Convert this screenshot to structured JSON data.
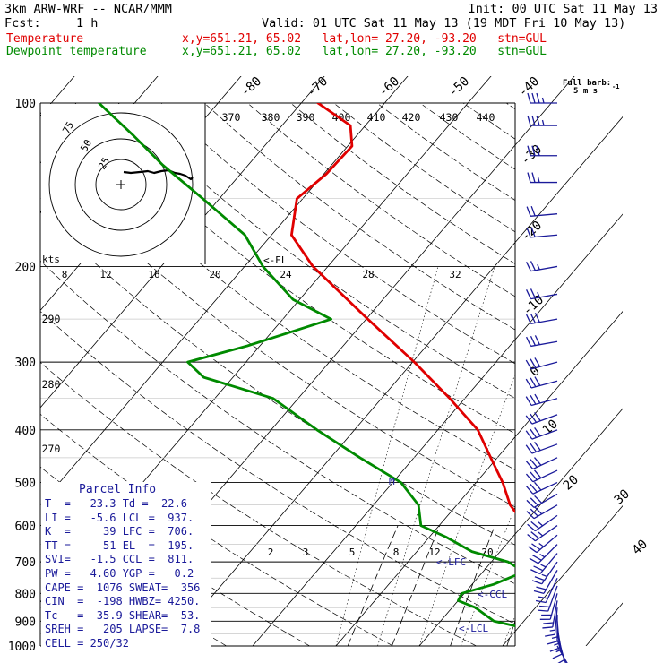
{
  "header": {
    "model": "3km ARW-WRF -- NCAR/MMM",
    "init": "Init: 00 UTC Sat 11 May 13",
    "fcst_label": "Fcst:",
    "fcst_value": "1 h",
    "valid": "Valid: 01 UTC Sat 11 May 13 (19 MDT Fri 10 May 13)",
    "temp_name": "Temperature",
    "dew_name": "Dewpoint temperature",
    "temp_loc": "x,y=651.21, 65.02   lat,lon= 27.20, -93.20   stn=GUL",
    "dew_loc": "x,y=651.21, 65.02   lat,lon= 27.20, -93.20   stn=GUL"
  },
  "colors": {
    "temperature": "#e00000",
    "dewpoint": "#008a00",
    "barbs": "#1a1a9a",
    "hodo": "#000000"
  },
  "barb_legend": {
    "line1": "Full barb:",
    "line2": "5 m s",
    "sup": "-1"
  },
  "labels": {
    "el": "<-EL",
    "lfc": "<-LFC",
    "ccl": "<-CCL",
    "lcl": "<-LCL",
    "m": "M",
    "kts": "kts"
  },
  "parcel_info": {
    "title": "Parcel Info",
    "rows": [
      "T  =   23.3 Td =  22.6",
      "LI =   -5.6 LCL =  937.",
      "K  =     39 LFC =  706.",
      "TT =     51 EL  =  195.",
      "SVI=   -1.5 CCL =  811.",
      "PW =   4.60 YGP =   0.2",
      "CAPE =  1076 SWEAT=  356",
      "CIN  =  -198 HWBZ= 4250.",
      "Tc   =  35.9 SHEAR=  53.",
      "SREH =   205 LAPSE=  7.8",
      "CELL = 250/32"
    ]
  },
  "chart_data": {
    "type": "line",
    "title": "3km ARW-WRF -- NCAR/MMM",
    "y_axis": {
      "label": "pressure (hPa)",
      "scale": "log",
      "ticks": [
        "100",
        "200",
        "300",
        "400",
        "500",
        "600",
        "700",
        "800",
        "900",
        "1000"
      ]
    },
    "isotherm_labels": [
      "-80",
      "-70",
      "-60",
      "-50",
      "-40",
      "-30",
      "-20",
      "-10",
      "0",
      "10",
      "20",
      "30",
      "40"
    ],
    "theta_labels": [
      "370",
      "380",
      "390",
      "400",
      "410",
      "420",
      "430",
      "440",
      "290",
      "280",
      "270"
    ],
    "mixing_ratio_labels": [
      "2",
      "3",
      "5",
      "8",
      "12",
      "20"
    ],
    "hodograph_rings": [
      "25",
      "50",
      "75"
    ],
    "hodograph_speed_labels": [
      "8",
      "12",
      "16",
      "20",
      "24",
      "28",
      "32"
    ],
    "series": [
      {
        "name": "Temperature",
        "points": [
          [
            1000,
            20.5
          ],
          [
            975,
            21.8
          ],
          [
            950,
            22.9
          ],
          [
            925,
            22.5
          ],
          [
            900,
            20.8
          ],
          [
            875,
            19.3
          ],
          [
            850,
            17.6
          ],
          [
            800,
            13.8
          ],
          [
            750,
            10.4
          ],
          [
            700,
            7.2
          ],
          [
            650,
            3.8
          ],
          [
            600,
            0.4
          ],
          [
            550,
            -3.6
          ],
          [
            500,
            -6.8
          ],
          [
            450,
            -10.8
          ],
          [
            400,
            -15.2
          ],
          [
            350,
            -21.8
          ],
          [
            300,
            -29.8
          ],
          [
            250,
            -39.8
          ],
          [
            200,
            -51.8
          ],
          [
            175,
            -57.6
          ],
          [
            150,
            -60.7
          ],
          [
            135,
            -59.7
          ],
          [
            120,
            -59.5
          ],
          [
            110,
            -61.8
          ],
          [
            100,
            -68.0
          ]
        ]
      },
      {
        "name": "Dewpoint temperature",
        "points": [
          [
            1000,
            19.7
          ],
          [
            975,
            18.6
          ],
          [
            950,
            15.0
          ],
          [
            925,
            10.5
          ],
          [
            900,
            6.4
          ],
          [
            850,
            2.8
          ],
          [
            825,
            0.0
          ],
          [
            800,
            -0.3
          ],
          [
            770,
            2.6
          ],
          [
            730,
            4.9
          ],
          [
            700,
            2.0
          ],
          [
            670,
            -3.4
          ],
          [
            630,
            -8.0
          ],
          [
            600,
            -12.2
          ],
          [
            550,
            -14.6
          ],
          [
            500,
            -19.0
          ],
          [
            450,
            -26.5
          ],
          [
            400,
            -34.5
          ],
          [
            350,
            -43.0
          ],
          [
            320,
            -53.5
          ],
          [
            300,
            -57.0
          ],
          [
            280,
            -51.5
          ],
          [
            250,
            -44.2
          ],
          [
            230,
            -50.8
          ],
          [
            200,
            -57.8
          ],
          [
            175,
            -63.2
          ],
          [
            150,
            -72.0
          ],
          [
            130,
            -80.3
          ],
          [
            115,
            -86.7
          ],
          [
            100,
            -94.3
          ]
        ]
      }
    ],
    "wind_barbs": {
      "pressures": [
        100,
        110,
        125,
        140,
        160,
        175,
        200,
        225,
        250,
        275,
        300,
        325,
        350,
        375,
        400,
        425,
        450,
        475,
        500,
        525,
        550,
        575,
        600,
        625,
        650,
        675,
        700,
        725,
        750,
        775,
        800,
        825,
        850,
        875,
        900,
        925,
        950,
        975,
        1000
      ],
      "directions_deg": [
        270,
        270,
        270,
        270,
        265,
        265,
        260,
        260,
        260,
        260,
        255,
        255,
        255,
        250,
        250,
        250,
        245,
        245,
        245,
        240,
        240,
        235,
        235,
        230,
        225,
        220,
        215,
        210,
        205,
        200,
        195,
        190,
        185,
        180,
        175,
        170,
        165,
        160,
        150
      ],
      "speeds_kt": [
        35,
        35,
        30,
        25,
        20,
        20,
        25,
        25,
        30,
        30,
        30,
        30,
        30,
        30,
        30,
        30,
        30,
        30,
        30,
        30,
        30,
        25,
        25,
        25,
        25,
        25,
        25,
        20,
        20,
        20,
        20,
        20,
        15,
        15,
        15,
        15,
        10,
        10,
        5
      ]
    }
  }
}
